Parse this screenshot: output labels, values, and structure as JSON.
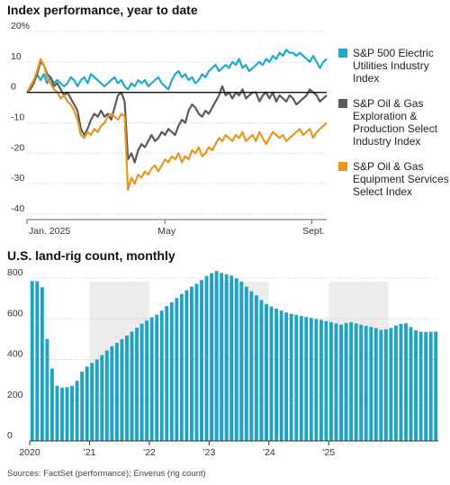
{
  "titles": {
    "chart1": "Index performance, year to date",
    "chart2": "U.S. land-rig count, monthly"
  },
  "source": "Sources: FactSet (performance); Enverus (rig count)",
  "colors": {
    "utilities": "#1fa9cc",
    "eandp": "#5a5a5a",
    "equip": "#e8961f",
    "bars": "#1fa3c2",
    "shade": "#ececec"
  },
  "chart_data": [
    {
      "type": "line",
      "title": "Index performance, year to date",
      "y_unit": "%",
      "ylim": [
        -40,
        20
      ],
      "y_ticks": [
        20,
        10,
        0,
        -10,
        -20,
        -30,
        -40
      ],
      "y_tick_labels": [
        "20%",
        "10",
        "0",
        "-10",
        "-20",
        "-30",
        "-40"
      ],
      "x_ticks": [
        {
          "label": "Jan. 2025",
          "t": 0.0
        },
        {
          "label": "May",
          "t": 0.46
        },
        {
          "label": "Sept.",
          "t": 0.95
        }
      ],
      "series": [
        {
          "name": "S&P 500 Electric Utilities Industry Index",
          "color_key": "utilities",
          "values": [
            0,
            2,
            4,
            6,
            4,
            6,
            3,
            5,
            3,
            4,
            3,
            2,
            3,
            5,
            4,
            2,
            4,
            5,
            3,
            6,
            5,
            4,
            3,
            2,
            3,
            4,
            5,
            3,
            4,
            2,
            1,
            3,
            2,
            4,
            3,
            4,
            2,
            3,
            4,
            5,
            3,
            2,
            1,
            4,
            6,
            7,
            5,
            6,
            4,
            5,
            3,
            4,
            6,
            5,
            7,
            8,
            9,
            7,
            8,
            9,
            8,
            10,
            9,
            11,
            8,
            9,
            7,
            8,
            9,
            10,
            9,
            11,
            10,
            12,
            11,
            13,
            12,
            14,
            13,
            13,
            12,
            13,
            12,
            11,
            10,
            12,
            10,
            8,
            10,
            11
          ]
        },
        {
          "name": "S&P Oil & Gas Exploration & Production Select Industry Index",
          "color_key": "eandp",
          "values": [
            0,
            1,
            3,
            6,
            10,
            9,
            6,
            5,
            2,
            3,
            1,
            -1,
            0,
            -2,
            -4,
            -6,
            -12,
            -14,
            -12,
            -9,
            -7,
            -8,
            -6,
            -8,
            -7,
            -9,
            -5,
            -1,
            0,
            -3,
            -22,
            -20,
            -23,
            -19,
            -17,
            -18,
            -16,
            -14,
            -16,
            -15,
            -13,
            -14,
            -12,
            -13,
            -14,
            -11,
            -9,
            -10,
            -6,
            -4,
            -5,
            -7,
            -8,
            -6,
            -7,
            -5,
            -3,
            -1,
            2,
            -1,
            0,
            -2,
            0,
            -1,
            1,
            -2,
            -1,
            0,
            0,
            -3,
            -1,
            0,
            -2,
            0,
            -3,
            -1,
            -2,
            -3,
            -1,
            -2,
            -4,
            -3,
            -2,
            -1,
            1,
            0,
            -1,
            -3,
            -2,
            -1
          ]
        },
        {
          "name": "S&P Oil & Gas Equipment Services Select Index",
          "color_key": "equip",
          "values": [
            0,
            2,
            4,
            7,
            11,
            9,
            5,
            3,
            1,
            0,
            -2,
            -1,
            -3,
            -4,
            -6,
            -9,
            -14,
            -15,
            -13,
            -14,
            -12,
            -13,
            -11,
            -10,
            -8,
            -7,
            -8,
            -9,
            -7,
            -8,
            -32,
            -28,
            -30,
            -27,
            -28,
            -26,
            -27,
            -25,
            -24,
            -26,
            -24,
            -22,
            -23,
            -21,
            -22,
            -20,
            -23,
            -21,
            -22,
            -19,
            -20,
            -18,
            -21,
            -20,
            -18,
            -19,
            -17,
            -15,
            -16,
            -14,
            -15,
            -16,
            -14,
            -15,
            -13,
            -16,
            -15,
            -14,
            -16,
            -13,
            -15,
            -17,
            -15,
            -13,
            -14,
            -15,
            -14,
            -16,
            -15,
            -14,
            -13,
            -12,
            -14,
            -13,
            -12,
            -15,
            -13,
            -12,
            -11,
            -10
          ]
        }
      ],
      "legend_placement": "right"
    },
    {
      "type": "bar",
      "title": "U.S. land-rig count, monthly",
      "ylim": [
        0,
        800
      ],
      "y_ticks": [
        0,
        200,
        400,
        600,
        800
      ],
      "x_tick_labels": [
        "2020",
        "’21",
        "’22",
        "’23",
        "’24",
        "’25"
      ],
      "shaded_years": [
        "’21",
        "’23",
        "’25"
      ],
      "values": [
        785,
        784,
        755,
        501,
        355,
        271,
        262,
        264,
        270,
        295,
        340,
        365,
        383,
        400,
        422,
        444,
        465,
        482,
        500,
        518,
        537,
        556,
        576,
        591,
        607,
        620,
        640,
        662,
        681,
        702,
        721,
        740,
        758,
        772,
        790,
        810,
        824,
        835,
        825,
        818,
        812,
        799,
        782,
        758,
        735,
        715,
        692,
        672,
        660,
        650,
        640,
        631,
        624,
        619,
        614,
        609,
        604,
        599,
        595,
        589,
        583,
        577,
        571,
        579,
        583,
        577,
        571,
        565,
        560,
        554,
        545,
        548,
        555,
        567,
        575,
        578,
        559,
        543,
        536,
        535,
        536,
        537
      ]
    }
  ]
}
